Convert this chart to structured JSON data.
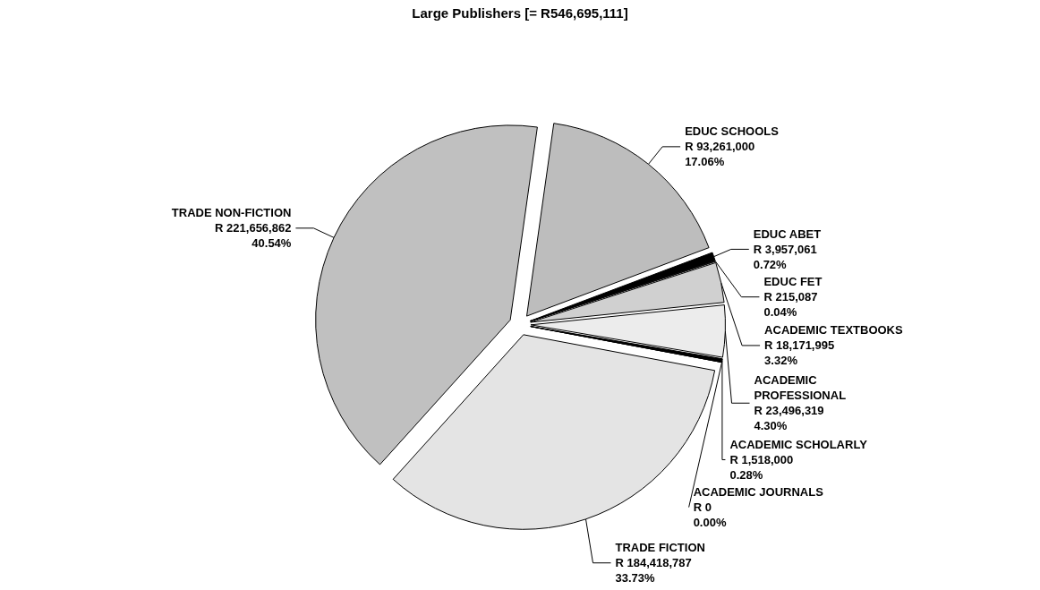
{
  "chart_data": {
    "type": "pie",
    "title": "Large Publishers [= R546,695,111]",
    "categories": [
      "EDUC SCHOOLS",
      "EDUC ABET",
      "EDUC FET",
      "ACADEMIC TEXTBOOKS",
      "ACADEMIC PROFESSIONAL",
      "ACADEMIC SCHOLARLY",
      "ACADEMIC JOURNALS",
      "TRADE FICTION",
      "TRADE NON-FICTION"
    ],
    "values": [
      93261000,
      3957061,
      215087,
      18171995,
      23496319,
      1518000,
      0,
      184418787,
      221656862
    ],
    "value_labels": [
      "R 93,261,000\n17.06%",
      "R 3,957,061\n0.72%",
      "R 215,087\n0.04%",
      "R 18,171,995\n3.32%",
      "R 23,496,319\n4.30%",
      "R 1,518,000\n0.28%",
      "R 0\n0.00%",
      "R 184,418,787\n33.73%",
      "R 221,656,862\n40.54%"
    ],
    "colors": [
      "#bdbdbd",
      "#000000",
      "#ffffff",
      "#d0d0d0",
      "#ececec",
      "#000000",
      "#ffffff",
      "#e4e4e4",
      "#c0c0c0"
    ]
  }
}
